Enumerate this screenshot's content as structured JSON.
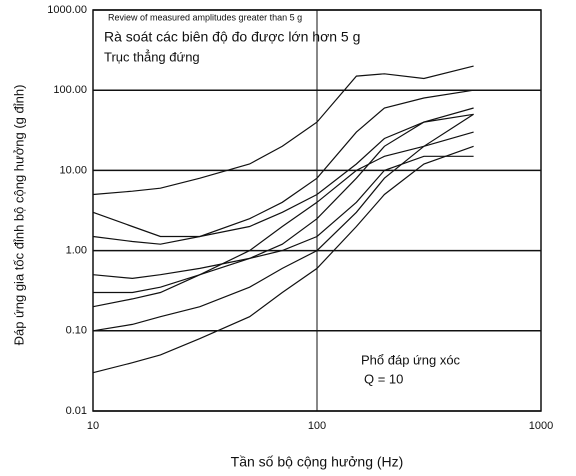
{
  "chart_data": {
    "type": "line",
    "annotations": [
      "Review of measured amplitudes greater than 5 g",
      "Rà soát các biên độ đo được lớn hơn 5 g",
      "Trục thẳng đứng",
      "Phổ đáp ứng xóc",
      "Q = 10"
    ],
    "x_label": "Tần số bộ cộng hưởng (Hz)",
    "y_label": "Đáp ứng gia tốc đỉnh bộ cộng hưởng (g đỉnh)",
    "x": [
      10,
      15,
      20,
      30,
      50,
      70,
      100,
      150,
      200,
      300,
      500
    ],
    "series": [
      {
        "color": "#111111",
        "values": [
          5,
          5.5,
          6,
          8,
          12,
          20,
          40,
          150,
          160,
          140,
          200
        ]
      },
      {
        "color": "#111111",
        "values": [
          3,
          2,
          1.5,
          1.5,
          2,
          3,
          5,
          12,
          25,
          40,
          50
        ]
      },
      {
        "color": "#111111",
        "values": [
          1.5,
          1.3,
          1.2,
          1.5,
          2.5,
          4,
          8,
          30,
          60,
          80,
          100
        ]
      },
      {
        "color": "#111111",
        "values": [
          0.5,
          0.45,
          0.5,
          0.6,
          0.8,
          1,
          1.5,
          4,
          10,
          15,
          15
        ]
      },
      {
        "color": "#111111",
        "values": [
          0.3,
          0.3,
          0.35,
          0.5,
          0.8,
          1.2,
          2.5,
          8,
          20,
          40,
          60
        ]
      },
      {
        "color": "#111111",
        "values": [
          0.2,
          0.25,
          0.3,
          0.5,
          1,
          2,
          4,
          10,
          15,
          20,
          30
        ]
      },
      {
        "color": "#111111",
        "values": [
          0.1,
          0.12,
          0.15,
          0.2,
          0.35,
          0.6,
          1,
          3,
          8,
          20,
          50
        ]
      },
      {
        "color": "#111111",
        "values": [
          0.03,
          0.04,
          0.05,
          0.08,
          0.15,
          0.3,
          0.6,
          2,
          5,
          12,
          20
        ]
      }
    ],
    "xlim": [
      10,
      1000
    ],
    "xticks": [
      10,
      100,
      1000
    ],
    "ylim": [
      0.01,
      1000
    ],
    "yticks": [
      {
        "value": 0.01,
        "label": "0.01"
      },
      {
        "value": 0.1,
        "label": "0.10"
      },
      {
        "value": 1,
        "label": "1.00"
      },
      {
        "value": 10,
        "label": "10.00"
      },
      {
        "value": 100,
        "label": "100.00"
      },
      {
        "value": 1000,
        "label": "1000.00"
      }
    ],
    "log_x": true,
    "log_y": true,
    "grid": true
  }
}
